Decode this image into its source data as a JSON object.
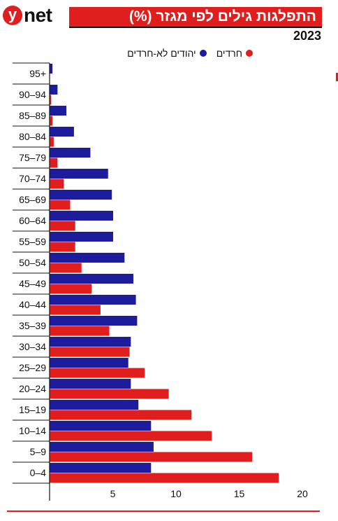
{
  "logo": {
    "y": "y",
    "net": "net"
  },
  "title": "התפלגות גילים לפי מגזר (%)",
  "subtitle": "2023",
  "legend": [
    {
      "label": "חרדים",
      "color": "#e01e1e"
    },
    {
      "label": "יהודים לא-חרדים",
      "color": "#1c1c9c"
    }
  ],
  "chart_data": {
    "type": "bar",
    "orientation": "horizontal",
    "categories": [
      "95+",
      "90–94",
      "85–89",
      "80–84",
      "75–79",
      "70–74",
      "65–69",
      "60–64",
      "55–59",
      "50–54",
      "45–49",
      "40–44",
      "35–39",
      "30–34",
      "25–29",
      "20–24",
      "15–19",
      "10–14",
      "5–9",
      "0–4"
    ],
    "series": [
      {
        "name": "יהודים לא-חרדים",
        "color": "#1c1c9c",
        "values": [
          0.2,
          0.6,
          1.3,
          1.9,
          3.2,
          4.6,
          4.9,
          5.0,
          5.0,
          5.9,
          6.6,
          6.8,
          6.9,
          6.4,
          6.2,
          6.4,
          7.0,
          8.0,
          8.2,
          8.0
        ]
      },
      {
        "name": "חרדים",
        "color": "#e01e1e",
        "values": [
          0.0,
          0.1,
          0.2,
          0.3,
          0.6,
          1.1,
          1.6,
          2.0,
          2.0,
          2.5,
          3.3,
          4.0,
          4.7,
          6.3,
          7.5,
          9.4,
          11.2,
          12.8,
          16.0,
          18.1
        ]
      }
    ],
    "xticks": [
      5,
      10,
      15,
      20
    ],
    "xlim": [
      0,
      20
    ],
    "grid": false,
    "legend_position": "top"
  }
}
